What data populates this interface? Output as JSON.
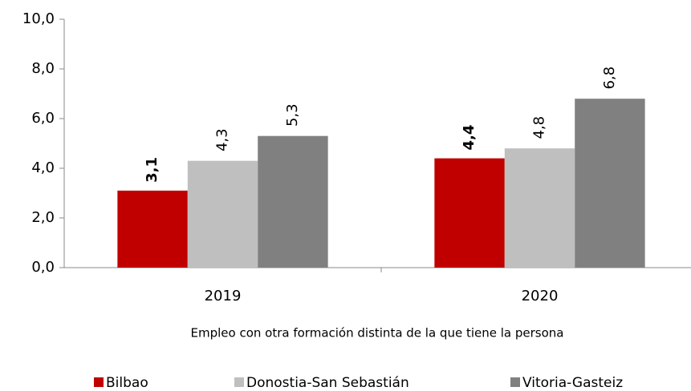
{
  "chart_data": {
    "type": "bar",
    "x_label": "Empleo con otra formación distinta de la que tiene la persona",
    "categories": [
      "2019",
      "2020"
    ],
    "series": [
      {
        "name": "Bilbao",
        "color": "#c00000",
        "values": [
          3.1,
          4.4
        ],
        "value_labels": [
          "3,1",
          "4,4"
        ]
      },
      {
        "name": "Donostia-San Sebastián",
        "color": "#bfbfbf",
        "values": [
          4.3,
          4.8
        ],
        "value_labels": [
          "4,3",
          "4,8"
        ]
      },
      {
        "name": "Vitoria-Gasteiz",
        "color": "#808080",
        "values": [
          5.3,
          6.8
        ],
        "value_labels": [
          "5,3",
          "6,8"
        ]
      }
    ],
    "ylim": [
      0,
      10
    ],
    "yticks": [
      {
        "value": 0,
        "label": "0,0"
      },
      {
        "value": 2,
        "label": "2,0"
      },
      {
        "value": 4,
        "label": "4,0"
      },
      {
        "value": 6,
        "label": "6,0"
      },
      {
        "value": 8,
        "label": "8,0"
      },
      {
        "value": 10,
        "label": "10,0"
      }
    ],
    "grid": false,
    "legend": "bottom"
  }
}
